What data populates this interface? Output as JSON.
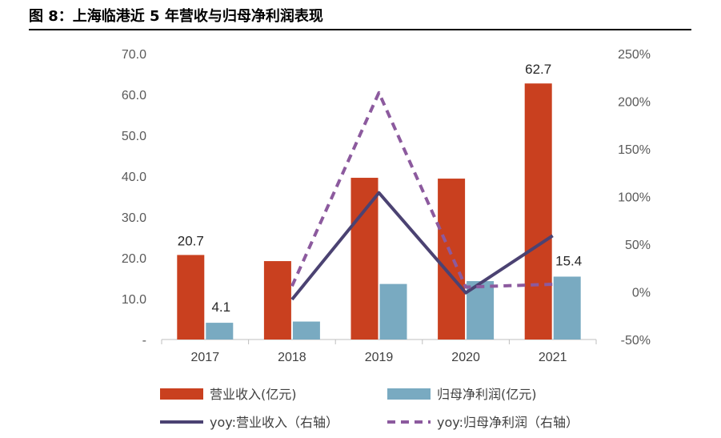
{
  "figure": {
    "title": "图 8：上海临港近 5 年营收与归母净利润表现"
  },
  "colors": {
    "revenue": "#c9401f",
    "net_profit": "#79aac1",
    "yoy_revenue": "#4b4272",
    "yoy_profit": "#8c5a9e"
  },
  "chart_data": {
    "type": "bar",
    "categories": [
      "2017",
      "2018",
      "2019",
      "2020",
      "2021"
    ],
    "y_left": {
      "range": [
        0,
        70
      ],
      "ticks": [
        "-",
        "10.0",
        "20.0",
        "30.0",
        "40.0",
        "50.0",
        "60.0",
        "70.0"
      ]
    },
    "y_right": {
      "range": [
        -50,
        250
      ],
      "ticks": [
        "-50%",
        "0%",
        "50%",
        "100%",
        "150%",
        "200%",
        "250%"
      ]
    },
    "series": [
      {
        "name": "营业收入(亿元)",
        "type": "bar",
        "axis": "left",
        "values": [
          20.7,
          19.2,
          39.6,
          39.4,
          62.7
        ],
        "labels": [
          "20.7",
          "",
          "",
          "",
          "62.7"
        ]
      },
      {
        "name": "归母净利润(亿元)",
        "type": "bar",
        "axis": "left",
        "values": [
          4.1,
          4.4,
          13.6,
          14.3,
          15.4
        ],
        "labels": [
          "4.1",
          "",
          "",
          "",
          "15.4"
        ]
      },
      {
        "name": "yoy:营业收入（右轴）",
        "type": "line",
        "axis": "right",
        "style": "solid",
        "values": [
          null,
          -8,
          104,
          -1,
          59
        ]
      },
      {
        "name": "yoy:归母净利润（右轴）",
        "type": "line",
        "axis": "right",
        "style": "dashed",
        "values": [
          null,
          6,
          209,
          5,
          8
        ]
      }
    ]
  }
}
